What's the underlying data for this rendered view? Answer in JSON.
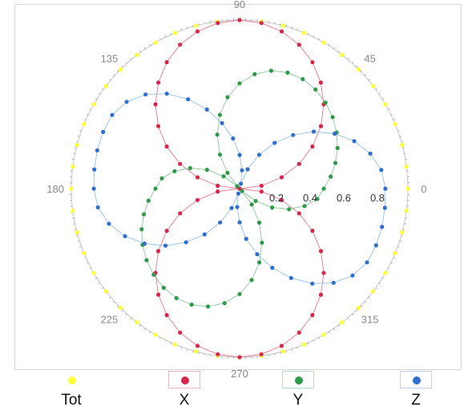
{
  "chart_data": {
    "type": "scatter",
    "coordinate_system": "polar",
    "angle_tick_labels": [
      "0",
      "45",
      "90",
      "135",
      "180",
      "225",
      "270",
      "315"
    ],
    "radius_tick_labels": [
      "0.2",
      "0.4",
      "0.6",
      "0.8"
    ],
    "radius_range": [
      0,
      1
    ],
    "grid": false,
    "legend_placement": "bottom",
    "series": [
      {
        "name": "Tot",
        "color": "#f2ee2a",
        "dot_color": "#ffff33",
        "points": [
          {
            "angle_deg": 0,
            "r": 1.0
          },
          {
            "angle_deg": 7.5,
            "r": 1.0
          },
          {
            "angle_deg": 15,
            "r": 1.0
          },
          {
            "angle_deg": 22.5,
            "r": 1.0
          },
          {
            "angle_deg": 30,
            "r": 1.0
          },
          {
            "angle_deg": 37.5,
            "r": 1.0
          },
          {
            "angle_deg": 45,
            "r": 1.0
          },
          {
            "angle_deg": 52.5,
            "r": 1.0
          },
          {
            "angle_deg": 60,
            "r": 1.0
          },
          {
            "angle_deg": 67.5,
            "r": 1.0
          },
          {
            "angle_deg": 75,
            "r": 1.0
          },
          {
            "angle_deg": 82.5,
            "r": 1.0
          },
          {
            "angle_deg": 90,
            "r": 1.0
          },
          {
            "angle_deg": 97.5,
            "r": 1.0
          },
          {
            "angle_deg": 105,
            "r": 1.0
          },
          {
            "angle_deg": 112.5,
            "r": 1.0
          },
          {
            "angle_deg": 120,
            "r": 1.0
          },
          {
            "angle_deg": 127.5,
            "r": 1.0
          },
          {
            "angle_deg": 135,
            "r": 1.0
          },
          {
            "angle_deg": 142.5,
            "r": 1.0
          },
          {
            "angle_deg": 150,
            "r": 1.0
          },
          {
            "angle_deg": 157.5,
            "r": 1.0
          },
          {
            "angle_deg": 165,
            "r": 1.0
          },
          {
            "angle_deg": 172.5,
            "r": 1.0
          },
          {
            "angle_deg": 180,
            "r": 1.0
          },
          {
            "angle_deg": 187.5,
            "r": 1.0
          },
          {
            "angle_deg": 195,
            "r": 1.0
          },
          {
            "angle_deg": 202.5,
            "r": 1.0
          },
          {
            "angle_deg": 210,
            "r": 1.0
          },
          {
            "angle_deg": 217.5,
            "r": 1.0
          },
          {
            "angle_deg": 225,
            "r": 1.0
          },
          {
            "angle_deg": 232.5,
            "r": 1.0
          },
          {
            "angle_deg": 240,
            "r": 1.0
          },
          {
            "angle_deg": 247.5,
            "r": 1.0
          },
          {
            "angle_deg": 255,
            "r": 1.0
          },
          {
            "angle_deg": 262.5,
            "r": 1.0
          },
          {
            "angle_deg": 270,
            "r": 1.0
          },
          {
            "angle_deg": 277.5,
            "r": 1.0
          },
          {
            "angle_deg": 285,
            "r": 1.0
          },
          {
            "angle_deg": 292.5,
            "r": 1.0
          },
          {
            "angle_deg": 300,
            "r": 1.0
          },
          {
            "angle_deg": 307.5,
            "r": 1.0
          },
          {
            "angle_deg": 315,
            "r": 1.0
          },
          {
            "angle_deg": 322.5,
            "r": 1.0
          },
          {
            "angle_deg": 330,
            "r": 1.0
          },
          {
            "angle_deg": 337.5,
            "r": 1.0
          },
          {
            "angle_deg": 345,
            "r": 1.0
          },
          {
            "angle_deg": 352.5,
            "r": 1.0
          }
        ]
      },
      {
        "name": "X",
        "color": "#e0607a",
        "dot_color": "#d6284a",
        "points": [
          {
            "angle_deg": 0,
            "r": 0.0
          },
          {
            "angle_deg": 7.5,
            "r": 0.131
          },
          {
            "angle_deg": 15,
            "r": 0.259
          },
          {
            "angle_deg": 22.5,
            "r": 0.383
          },
          {
            "angle_deg": 30,
            "r": 0.5
          },
          {
            "angle_deg": 37.5,
            "r": 0.609
          },
          {
            "angle_deg": 45,
            "r": 0.707
          },
          {
            "angle_deg": 52.5,
            "r": 0.793
          },
          {
            "angle_deg": 60,
            "r": 0.866
          },
          {
            "angle_deg": 67.5,
            "r": 0.924
          },
          {
            "angle_deg": 75,
            "r": 0.966
          },
          {
            "angle_deg": 82.5,
            "r": 0.991
          },
          {
            "angle_deg": 90,
            "r": 1.0
          },
          {
            "angle_deg": 97.5,
            "r": 0.991
          },
          {
            "angle_deg": 105,
            "r": 0.966
          },
          {
            "angle_deg": 112.5,
            "r": 0.924
          },
          {
            "angle_deg": 120,
            "r": 0.866
          },
          {
            "angle_deg": 127.5,
            "r": 0.793
          },
          {
            "angle_deg": 135,
            "r": 0.707
          },
          {
            "angle_deg": 142.5,
            "r": 0.609
          },
          {
            "angle_deg": 150,
            "r": 0.5
          },
          {
            "angle_deg": 157.5,
            "r": 0.383
          },
          {
            "angle_deg": 165,
            "r": 0.259
          },
          {
            "angle_deg": 172.5,
            "r": 0.131
          },
          {
            "angle_deg": 180,
            "r": 0.0
          },
          {
            "angle_deg": 187.5,
            "r": 0.131
          },
          {
            "angle_deg": 195,
            "r": 0.259
          },
          {
            "angle_deg": 202.5,
            "r": 0.383
          },
          {
            "angle_deg": 210,
            "r": 0.5
          },
          {
            "angle_deg": 217.5,
            "r": 0.609
          },
          {
            "angle_deg": 225,
            "r": 0.707
          },
          {
            "angle_deg": 232.5,
            "r": 0.793
          },
          {
            "angle_deg": 240,
            "r": 0.866
          },
          {
            "angle_deg": 247.5,
            "r": 0.924
          },
          {
            "angle_deg": 255,
            "r": 0.966
          },
          {
            "angle_deg": 262.5,
            "r": 0.991
          },
          {
            "angle_deg": 270,
            "r": 1.0
          },
          {
            "angle_deg": 277.5,
            "r": 0.991
          },
          {
            "angle_deg": 285,
            "r": 0.966
          },
          {
            "angle_deg": 292.5,
            "r": 0.924
          },
          {
            "angle_deg": 300,
            "r": 0.866
          },
          {
            "angle_deg": 307.5,
            "r": 0.793
          },
          {
            "angle_deg": 315,
            "r": 0.707
          },
          {
            "angle_deg": 322.5,
            "r": 0.609
          },
          {
            "angle_deg": 330,
            "r": 0.5
          },
          {
            "angle_deg": 337.5,
            "r": 0.383
          },
          {
            "angle_deg": 345,
            "r": 0.259
          },
          {
            "angle_deg": 352.5,
            "r": 0.131
          }
        ]
      },
      {
        "name": "Y",
        "color": "#72c08a",
        "dot_color": "#2f9a4a",
        "points": [
          {
            "angle_deg": 0,
            "r": 0.5
          },
          {
            "angle_deg": 7.5,
            "r": 0.546
          },
          {
            "angle_deg": 15,
            "r": 0.589
          },
          {
            "angle_deg": 22.5,
            "r": 0.63
          },
          {
            "angle_deg": 30,
            "r": 0.666
          },
          {
            "angle_deg": 37.5,
            "r": 0.697
          },
          {
            "angle_deg": 45,
            "r": 0.722
          },
          {
            "angle_deg": 52.5,
            "r": 0.741
          },
          {
            "angle_deg": 60,
            "r": 0.75
          },
          {
            "angle_deg": 67.5,
            "r": 0.745
          },
          {
            "angle_deg": 75,
            "r": 0.724
          },
          {
            "angle_deg": 82.5,
            "r": 0.685
          },
          {
            "angle_deg": 90,
            "r": 0.625
          },
          {
            "angle_deg": 97.5,
            "r": 0.547
          },
          {
            "angle_deg": 105,
            "r": 0.453
          },
          {
            "angle_deg": 112.5,
            "r": 0.347
          },
          {
            "angle_deg": 120,
            "r": 0.233
          },
          {
            "angle_deg": 127.5,
            "r": 0.118
          },
          {
            "angle_deg": 135,
            "r": 0.02
          },
          {
            "angle_deg": 142.5,
            "r": 0.12
          },
          {
            "angle_deg": 150,
            "r": 0.224
          },
          {
            "angle_deg": 157.5,
            "r": 0.318
          },
          {
            "angle_deg": 165,
            "r": 0.4
          },
          {
            "angle_deg": 172.5,
            "r": 0.466
          },
          {
            "angle_deg": 180,
            "r": 0.5
          },
          {
            "angle_deg": 187.5,
            "r": 0.546
          },
          {
            "angle_deg": 195,
            "r": 0.589
          },
          {
            "angle_deg": 202.5,
            "r": 0.63
          },
          {
            "angle_deg": 210,
            "r": 0.666
          },
          {
            "angle_deg": 217.5,
            "r": 0.697
          },
          {
            "angle_deg": 225,
            "r": 0.722
          },
          {
            "angle_deg": 232.5,
            "r": 0.741
          },
          {
            "angle_deg": 240,
            "r": 0.75
          },
          {
            "angle_deg": 247.5,
            "r": 0.745
          },
          {
            "angle_deg": 255,
            "r": 0.724
          },
          {
            "angle_deg": 262.5,
            "r": 0.685
          },
          {
            "angle_deg": 270,
            "r": 0.625
          },
          {
            "angle_deg": 277.5,
            "r": 0.547
          },
          {
            "angle_deg": 285,
            "r": 0.453
          },
          {
            "angle_deg": 292.5,
            "r": 0.347
          },
          {
            "angle_deg": 300,
            "r": 0.233
          },
          {
            "angle_deg": 307.5,
            "r": 0.118
          },
          {
            "angle_deg": 315,
            "r": 0.02
          },
          {
            "angle_deg": 322.5,
            "r": 0.12
          },
          {
            "angle_deg": 330,
            "r": 0.224
          },
          {
            "angle_deg": 337.5,
            "r": 0.318
          },
          {
            "angle_deg": 345,
            "r": 0.4
          },
          {
            "angle_deg": 352.5,
            "r": 0.466
          }
        ]
      },
      {
        "name": "Z",
        "color": "#7fb6e8",
        "dot_color": "#2f6fcf",
        "points": [
          {
            "angle_deg": 0,
            "r": 0.866
          },
          {
            "angle_deg": 7.5,
            "r": 0.849
          },
          {
            "angle_deg": 15,
            "r": 0.804
          },
          {
            "angle_deg": 22.5,
            "r": 0.737
          },
          {
            "angle_deg": 30,
            "r": 0.652
          },
          {
            "angle_deg": 37.5,
            "r": 0.555
          },
          {
            "angle_deg": 45,
            "r": 0.45
          },
          {
            "angle_deg": 52.5,
            "r": 0.342
          },
          {
            "angle_deg": 60,
            "r": 0.232
          },
          {
            "angle_deg": 67.5,
            "r": 0.124
          },
          {
            "angle_deg": 75,
            "r": 0.03
          },
          {
            "angle_deg": 82.5,
            "r": 0.11
          },
          {
            "angle_deg": 90,
            "r": 0.2
          },
          {
            "angle_deg": 97.5,
            "r": 0.3
          },
          {
            "angle_deg": 105,
            "r": 0.403
          },
          {
            "angle_deg": 112.5,
            "r": 0.508
          },
          {
            "angle_deg": 120,
            "r": 0.612
          },
          {
            "angle_deg": 127.5,
            "r": 0.71
          },
          {
            "angle_deg": 135,
            "r": 0.79
          },
          {
            "angle_deg": 142.5,
            "r": 0.846
          },
          {
            "angle_deg": 150,
            "r": 0.874
          },
          {
            "angle_deg": 157.5,
            "r": 0.878
          },
          {
            "angle_deg": 165,
            "r": 0.876
          },
          {
            "angle_deg": 172.5,
            "r": 0.871
          },
          {
            "angle_deg": 180,
            "r": 0.866
          },
          {
            "angle_deg": 187.5,
            "r": 0.849
          },
          {
            "angle_deg": 195,
            "r": 0.804
          },
          {
            "angle_deg": 202.5,
            "r": 0.737
          },
          {
            "angle_deg": 210,
            "r": 0.652
          },
          {
            "angle_deg": 217.5,
            "r": 0.555
          },
          {
            "angle_deg": 225,
            "r": 0.45
          },
          {
            "angle_deg": 232.5,
            "r": 0.342
          },
          {
            "angle_deg": 240,
            "r": 0.232
          },
          {
            "angle_deg": 247.5,
            "r": 0.124
          },
          {
            "angle_deg": 255,
            "r": 0.03
          },
          {
            "angle_deg": 262.5,
            "r": 0.11
          },
          {
            "angle_deg": 270,
            "r": 0.2
          },
          {
            "angle_deg": 277.5,
            "r": 0.3
          },
          {
            "angle_deg": 285,
            "r": 0.403
          },
          {
            "angle_deg": 292.5,
            "r": 0.508
          },
          {
            "angle_deg": 300,
            "r": 0.612
          },
          {
            "angle_deg": 307.5,
            "r": 0.71
          },
          {
            "angle_deg": 315,
            "r": 0.79
          },
          {
            "angle_deg": 322.5,
            "r": 0.846
          },
          {
            "angle_deg": 330,
            "r": 0.874
          },
          {
            "angle_deg": 337.5,
            "r": 0.878
          },
          {
            "angle_deg": 345,
            "r": 0.876
          },
          {
            "angle_deg": 352.5,
            "r": 0.871
          }
        ]
      }
    ]
  },
  "legend": [
    {
      "label": "Tot",
      "color": "#ffff33",
      "box_border": "transparent"
    },
    {
      "label": "X",
      "color": "#d6284a",
      "box_border": "#f0b7c3"
    },
    {
      "label": "Y",
      "color": "#2f9a4a",
      "box_border": "#b9dcc4"
    },
    {
      "label": "Z",
      "color": "#2f6fcf",
      "box_border": "#bcd3f0"
    }
  ]
}
